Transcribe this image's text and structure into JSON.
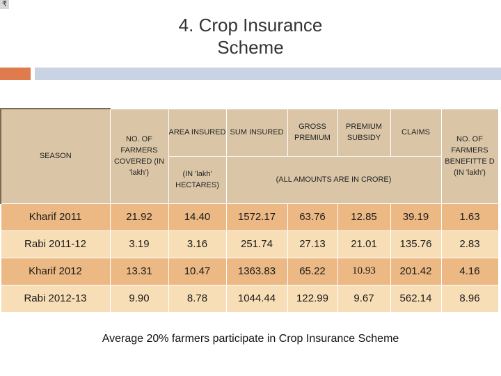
{
  "corner_symbol": "₹",
  "title": {
    "line1": "4. Crop Insurance",
    "line2": "Scheme"
  },
  "table": {
    "headers": {
      "season": "SEASON",
      "farmers": "NO. OF FARMERS COVERED (IN 'lakh')",
      "area_top": "AREA INSURED",
      "area_bottom": "(IN 'lakh' HECTARES)",
      "sum": "SUM INSURED",
      "gross": "GROSS PREMIUM",
      "subsidy": "PREMIUM SUBSIDY",
      "claims": "CLAIMS",
      "amounts_note": "(ALL AMOUNTS ARE IN CRORE)",
      "benefitted": "NO. OF FARMERS BENEFITTE D (IN 'lakh')"
    },
    "rows": [
      {
        "season": "Kharif 2011",
        "farmers": "21.92",
        "area": "14.40",
        "sum": "1572.17",
        "gross": "63.76",
        "subsidy": "12.85",
        "claims": "39.19",
        "benefitted": "1.63"
      },
      {
        "season": "Rabi 2011-12",
        "farmers": "3.19",
        "area": "3.16",
        "sum": "251.74",
        "gross": "27.13",
        "subsidy": "21.01",
        "claims": "135.76",
        "benefitted": "2.83"
      },
      {
        "season": "Kharif 2012",
        "farmers": "13.31",
        "area": "10.47",
        "sum": "1363.83",
        "gross": "65.22",
        "subsidy": "10.93",
        "claims": "201.42",
        "benefitted": "4.16"
      },
      {
        "season": "Rabi 2012-13",
        "farmers": "9.90",
        "area": "8.78",
        "sum": "1044.44",
        "gross": "122.99",
        "subsidy": "9.67",
        "claims": "562.14",
        "benefitted": "8.96"
      }
    ]
  },
  "footer": "Average 20% farmers participate in Crop Insurance Scheme"
}
